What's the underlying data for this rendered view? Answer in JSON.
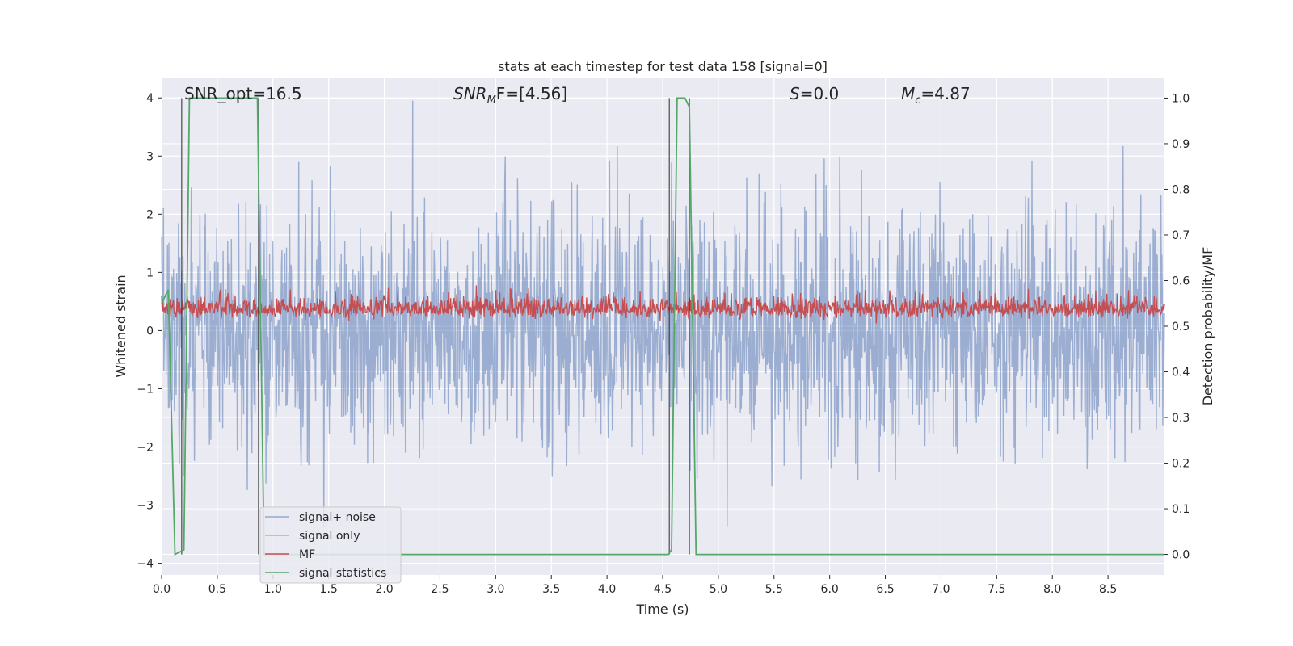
{
  "chart_data": {
    "type": "line",
    "title": "stats at each timestep for test data 158 [signal=0]",
    "xlabel": "Time (s)",
    "ylabel": "Whitened strain",
    "y2label": "Detection probability/MF",
    "xlim": [
      0.0,
      9.0
    ],
    "ylim": [
      -4.2,
      4.35
    ],
    "y2lim": [
      -0.045,
      1.045
    ],
    "xticks": [
      "0.0",
      "0.5",
      "1.0",
      "1.5",
      "2.0",
      "2.5",
      "3.0",
      "3.5",
      "4.0",
      "4.5",
      "5.0",
      "5.5",
      "6.0",
      "6.5",
      "7.0",
      "7.5",
      "8.0",
      "8.5"
    ],
    "xtick_values": [
      0,
      0.5,
      1,
      1.5,
      2,
      2.5,
      3,
      3.5,
      4,
      4.5,
      5,
      5.5,
      6,
      6.5,
      7,
      7.5,
      8,
      8.5
    ],
    "yticks": [
      "−4",
      "−3",
      "−2",
      "−1",
      "0",
      "1",
      "2",
      "3",
      "4"
    ],
    "ytick_values": [
      -4,
      -3,
      -2,
      -1,
      0,
      1,
      2,
      3,
      4
    ],
    "y2ticks": [
      "0.0",
      "0.1",
      "0.2",
      "0.3",
      "0.4",
      "0.5",
      "0.6",
      "0.7",
      "0.8",
      "0.9",
      "1.0"
    ],
    "y2tick_values": [
      0,
      0.1,
      0.2,
      0.3,
      0.4,
      0.5,
      0.6,
      0.7,
      0.8,
      0.9,
      1.0
    ],
    "grid": true,
    "legend_position": "lower-left",
    "annotations": {
      "snr_opt": "SNR_opt=16.5",
      "snr_mf_name": "SNR",
      "snr_mf_sub": "M",
      "snr_mf_rest": "F=[4.56]",
      "s_name": "S",
      "s_rest": "=0.0",
      "mc_name": "M",
      "mc_sub": "c",
      "mc_rest": "=4.87"
    },
    "vertical_lines_x": [
      0.18,
      0.87,
      4.56,
      4.74
    ],
    "series": [
      {
        "name": "signal+ noise",
        "color": "#4c72b0",
        "axis": "left",
        "description_values": {
          "center": 0.0,
          "typical_range": [
            -2.0,
            2.0
          ],
          "extreme_range": [
            -3.7,
            4.0
          ]
        }
      },
      {
        "name": "signal only",
        "color": "#dd8452",
        "axis": "left",
        "values": []
      },
      {
        "name": "MF",
        "color": "#c44e52",
        "axis": "right",
        "description_values": {
          "typical_range": [
            0.5,
            0.57
          ],
          "extreme_range": [
            0.49,
            0.62
          ]
        }
      },
      {
        "name": "signal statistics",
        "color": "#55a868",
        "axis": "right",
        "x": [
          0.0,
          0.06,
          0.12,
          0.2,
          0.25,
          0.86,
          0.92,
          4.55,
          4.58,
          4.63,
          4.7,
          4.74,
          4.8,
          9.0
        ],
        "values": [
          0.55,
          0.58,
          0.0,
          0.01,
          1.0,
          1.0,
          0.0,
          0.0,
          0.01,
          1.0,
          1.0,
          0.98,
          0.0,
          0.0
        ]
      }
    ]
  }
}
